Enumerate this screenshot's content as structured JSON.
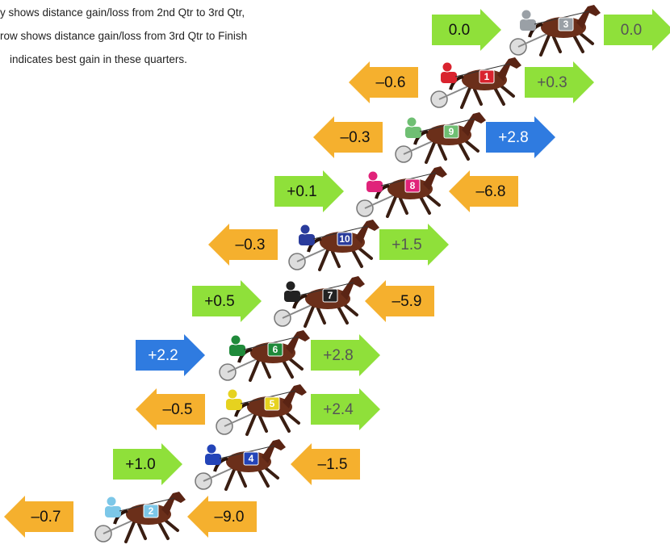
{
  "notes": [
    "y shows distance gain/loss from 2nd Qtr to 3rd Qtr,",
    "row shows distance gain/loss from 3rd Qtr to Finish",
    "indicates best gain in these quarters."
  ],
  "rows": [
    {
      "number": "3",
      "silk": "#9aa0a6",
      "left": {
        "label": "0.0",
        "direction": "right",
        "color": "#8fe03a"
      },
      "right": {
        "label": "0.0",
        "direction": "right",
        "color": "#8fe03a"
      }
    },
    {
      "number": "1",
      "silk": "#d9232e",
      "left": {
        "label": "–0.6",
        "direction": "left",
        "color": "#f5b02e"
      },
      "right": {
        "label": "+0.3",
        "direction": "right",
        "color": "#8fe03a"
      }
    },
    {
      "number": "9",
      "silk": "#6fbf73",
      "left": {
        "label": "–0.3",
        "direction": "left",
        "color": "#f5b02e"
      },
      "right": {
        "label": "+2.8",
        "direction": "right",
        "color": "#2f7be0"
      }
    },
    {
      "number": "8",
      "silk": "#e0237a",
      "left": {
        "label": "+0.1",
        "direction": "right",
        "color": "#8fe03a"
      },
      "right": {
        "label": "–6.8",
        "direction": "left",
        "color": "#f5b02e"
      }
    },
    {
      "number": "10",
      "silk": "#2a3c9c",
      "left": {
        "label": "–0.3",
        "direction": "left",
        "color": "#f5b02e"
      },
      "right": {
        "label": "+1.5",
        "direction": "right",
        "color": "#8fe03a"
      }
    },
    {
      "number": "7",
      "silk": "#222222",
      "left": {
        "label": "+0.5",
        "direction": "right",
        "color": "#8fe03a"
      },
      "right": {
        "label": "–5.9",
        "direction": "left",
        "color": "#f5b02e"
      }
    },
    {
      "number": "6",
      "silk": "#1f8a3a",
      "left": {
        "label": "+2.2",
        "direction": "right",
        "color": "#2f7be0"
      },
      "right": {
        "label": "+2.8",
        "direction": "right",
        "color": "#8fe03a"
      }
    },
    {
      "number": "5",
      "silk": "#e6d21f",
      "left": {
        "label": "–0.5",
        "direction": "left",
        "color": "#f5b02e"
      },
      "right": {
        "label": "+2.4",
        "direction": "right",
        "color": "#8fe03a"
      }
    },
    {
      "number": "4",
      "silk": "#2344b8",
      "left": {
        "label": "+1.0",
        "direction": "right",
        "color": "#8fe03a"
      },
      "right": {
        "label": "–1.5",
        "direction": "left",
        "color": "#f5b02e"
      }
    },
    {
      "number": "2",
      "silk": "#7cc7e8",
      "left": {
        "label": "–0.7",
        "direction": "left",
        "color": "#f5b02e"
      },
      "right": {
        "label": "–9.0",
        "direction": "left",
        "color": "#f5b02e"
      }
    }
  ]
}
